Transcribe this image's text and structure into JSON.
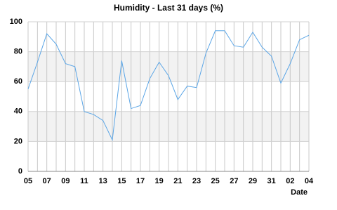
{
  "chart_data": {
    "type": "line",
    "title": "Humidity - Last 31 days (%)",
    "x_label": "Date",
    "categories": [
      "05",
      null,
      "07",
      null,
      "09",
      null,
      "11",
      null,
      "13",
      null,
      "15",
      null,
      "17",
      null,
      "19",
      null,
      "21",
      null,
      "23",
      null,
      "25",
      null,
      "27",
      null,
      "29",
      null,
      "31",
      null,
      "02",
      null,
      "04"
    ],
    "values": [
      55,
      73,
      92,
      85,
      72,
      70,
      40,
      38,
      34,
      21,
      74,
      42,
      44,
      62,
      73,
      64,
      48,
      57,
      56,
      79,
      94,
      94,
      84,
      83,
      93,
      83,
      77,
      59,
      72,
      88,
      91
    ],
    "color": "#5aa5e6",
    "ylim": [
      0,
      100
    ],
    "yticks": [
      0,
      20,
      40,
      60,
      80,
      100
    ],
    "grid": true
  }
}
